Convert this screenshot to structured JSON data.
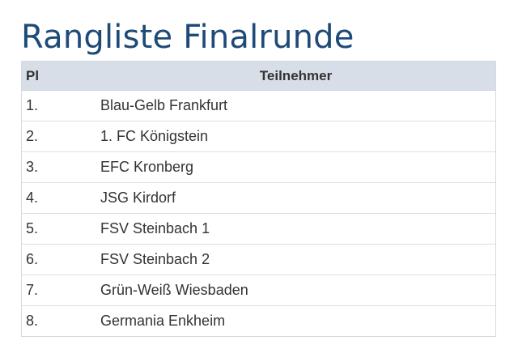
{
  "page": {
    "title": "Rangliste Finalrunde"
  },
  "table": {
    "headers": {
      "rank": "Pl",
      "participant": "Teilnehmer"
    },
    "rows": [
      {
        "rank": "1.",
        "name": "Blau-Gelb Frankfurt"
      },
      {
        "rank": "2.",
        "name": "1. FC Königstein"
      },
      {
        "rank": "3.",
        "name": "EFC Kronberg"
      },
      {
        "rank": "4.",
        "name": "JSG Kirdorf"
      },
      {
        "rank": "5.",
        "name": "FSV Steinbach 1"
      },
      {
        "rank": "6.",
        "name": "FSV Steinbach 2"
      },
      {
        "rank": "7.",
        "name": "Grün-Weiß Wiesbaden"
      },
      {
        "rank": "8.",
        "name": "Germania Enkheim"
      }
    ]
  },
  "colors": {
    "title": "#1e4a78",
    "header_background": "#d7dee7",
    "text": "#333333",
    "border": "#d4dae0"
  }
}
